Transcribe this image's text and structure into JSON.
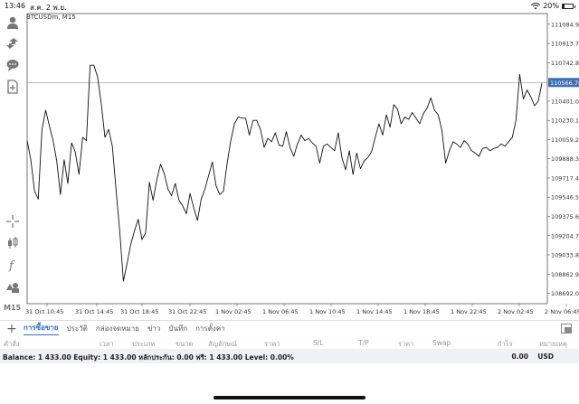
{
  "status_bar": {
    "time": "13:46",
    "date": "ส.ค. 2 พ.ย.",
    "battery": "20%",
    "battery_level": 0.2
  },
  "toolbar": {
    "tools": [
      "person-icon",
      "trade-arrows-icon",
      "chat-icon",
      "new-order-icon",
      "crosshair-icon",
      "candlestick-icon",
      "function-icon",
      "objects-icon"
    ],
    "timeframe_label": "M15"
  },
  "chart": {
    "symbol_label": "BTCUSDm, M15",
    "current_price_label": "110566.78",
    "colors": {
      "line": "#111111",
      "price_line": "#999999",
      "price_tag": "#3d6db5"
    }
  },
  "chart_data": {
    "type": "line",
    "x_ticks": [
      "31 Oct 10:45",
      "31 Oct 14:45",
      "31 Oct 18:45",
      "31 Oct 22:45",
      "1 Nov 02:45",
      "1 Nov 06:45",
      "1 Nov 10:45",
      "1 Nov 14:45",
      "1 Nov 18:45",
      "1 Nov 22:45",
      "2 Nov 02:45",
      "2 Nov 06:45"
    ],
    "y_ticks": [
      111084.9,
      110913.7,
      110742.8,
      110401.0,
      110230.1,
      110059.2,
      109888.3,
      109717.4,
      109546.5,
      109375.6,
      109204.7,
      109033.8,
      108862.9,
      108692.0
    ],
    "ylim": [
      108600,
      111180
    ],
    "current_price": 110566.78,
    "values": [
      110050,
      109880,
      109600,
      109530,
      110150,
      110320,
      110180,
      110050,
      109870,
      109570,
      109880,
      109670,
      110030,
      109950,
      109750,
      110080,
      110050,
      110720,
      110720,
      110620,
      110380,
      110080,
      110150,
      110000,
      109620,
      109250,
      108800,
      108960,
      109130,
      109250,
      109350,
      109170,
      109230,
      109680,
      109520,
      109700,
      109840,
      109760,
      109620,
      109560,
      109670,
      109520,
      109470,
      109400,
      109580,
      109450,
      109340,
      109530,
      109620,
      109740,
      109860,
      109650,
      109570,
      109600,
      109850,
      110050,
      110200,
      110260,
      110250,
      110250,
      110100,
      110230,
      110230,
      110150,
      109990,
      110070,
      110040,
      110120,
      110010,
      110000,
      110130,
      109990,
      109910,
      110020,
      110100,
      110050,
      110070,
      110030,
      110000,
      109850,
      110000,
      110020,
      109990,
      109960,
      110120,
      109900,
      109790,
      109960,
      109750,
      109940,
      109800,
      109870,
      109900,
      109950,
      110080,
      110200,
      110100,
      110280,
      110170,
      110370,
      110330,
      110200,
      110260,
      110240,
      110300,
      110250,
      110200,
      110290,
      110340,
      110430,
      110320,
      110280,
      110140,
      109850,
      109960,
      110040,
      110020,
      109990,
      110050,
      110020,
      109960,
      109940,
      109910,
      109980,
      109990,
      109960,
      109980,
      109990,
      110020,
      110000,
      110040,
      110080,
      110230,
      110640,
      110420,
      110500,
      110440,
      110360,
      110400,
      110560
    ]
  },
  "tabs": [
    "การซื้อขาย",
    "ประวัติ",
    "กล่องจดหมาย",
    "ข่าว",
    "บันทึก",
    "การตั้งค่า"
  ],
  "columns": [
    "คำสั่ง",
    "เวลา",
    "ประเภท",
    "ขนาด",
    "สัญลักษณ์",
    "ราคา",
    "S/L",
    "T/P",
    "ราคา",
    "Swap",
    "กำไร",
    "หมายเหตุ"
  ],
  "balance": {
    "text": "Balance: 1 433.00 Equity: 1 433.00 หลักประกัน: 0.00 ฟรี: 1 433.00 Level: 0.00%",
    "profit": "0.00",
    "currency": "USD"
  }
}
